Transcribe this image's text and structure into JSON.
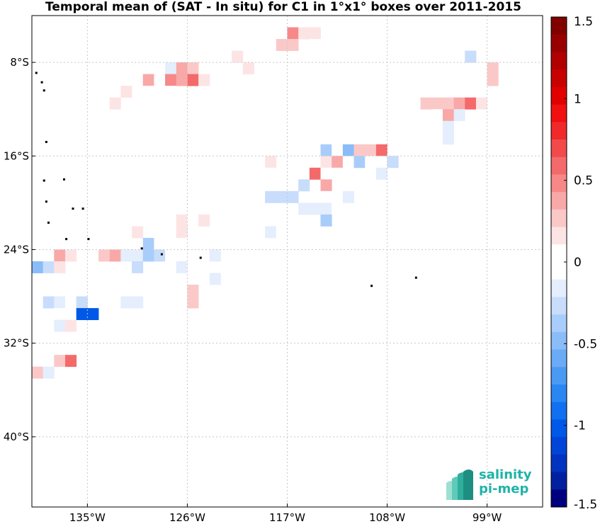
{
  "title": "Temporal mean of (SAT - In situ) for C1 in 1°x1° boxes over 2011-2015",
  "x_tick_labels": [
    "135°W",
    "126°W",
    "117°W",
    "108°W",
    "99°W"
  ],
  "y_tick_labels": [
    "8°S",
    "16°S",
    "24°S",
    "32°S",
    "40°S"
  ],
  "colorbar": {
    "tick_labels": [
      "1.5",
      "1",
      "0.5",
      "0",
      "-0.5",
      "-1",
      "-1.5"
    ],
    "tick_values": [
      1.5,
      1,
      0.5,
      0,
      -0.5,
      -1,
      -1.5
    ],
    "min": -1.5,
    "max": 1.5,
    "colors": [
      "#00007f",
      "#0020a0",
      "#0033c0",
      "#0044d8",
      "#0058e8",
      "#1070f0",
      "#2a86f2",
      "#4a9af4",
      "#6aabf6",
      "#8abcf8",
      "#a8cdfa",
      "#c8ddfb",
      "#e4eefd",
      "#ffffff",
      "#ffffff",
      "#fde4e4",
      "#fbc8c8",
      "#f9a8a8",
      "#f68888",
      "#f46a6a",
      "#f24a4a",
      "#f02a2a",
      "#f01010",
      "#e00000",
      "#c80000",
      "#b00000",
      "#980000",
      "#800000"
    ]
  },
  "logo": {
    "line1": "salinity",
    "line2": "pi-mep"
  },
  "chart_data": {
    "type": "heatmap",
    "title": "Temporal mean of (SAT - In situ) for C1 in 1°x1° boxes over 2011-2015",
    "x_unit": "longitude",
    "y_unit": "latitude",
    "xlim": [
      -140,
      -94
    ],
    "ylim": [
      -46,
      -4
    ],
    "grid": true,
    "cells": [
      {
        "lon": -116.5,
        "lat": -5.5,
        "v": 0.45
      },
      {
        "lon": -115.5,
        "lat": -5.5,
        "v": 0.15
      },
      {
        "lon": -114.5,
        "lat": -5.5,
        "v": 0.15
      },
      {
        "lon": -117.5,
        "lat": -6.5,
        "v": 0.3
      },
      {
        "lon": -116.5,
        "lat": -6.5,
        "v": 0.3
      },
      {
        "lon": -114.5,
        "lat": -6.5,
        "v": 0.1
      },
      {
        "lon": -112.5,
        "lat": -5.5,
        "v": 0.1
      },
      {
        "lon": -100.5,
        "lat": -5.5,
        "v": -0.1
      },
      {
        "lon": -99.5,
        "lat": -5.5,
        "v": -0.1
      },
      {
        "lon": -100.5,
        "lat": -7.5,
        "v": -0.3
      },
      {
        "lon": -121.5,
        "lat": -7.5,
        "v": 0.15
      },
      {
        "lon": -120.5,
        "lat": -8.5,
        "v": 0.15
      },
      {
        "lon": -127.5,
        "lat": -8.5,
        "v": -0.2
      },
      {
        "lon": -126.5,
        "lat": -8.5,
        "v": 0.35
      },
      {
        "lon": -125.5,
        "lat": -8.5,
        "v": 0.25
      },
      {
        "lon": -129.5,
        "lat": -9.5,
        "v": 0.35
      },
      {
        "lon": -128.5,
        "lat": -9.5,
        "v": -0.1
      },
      {
        "lon": -127.5,
        "lat": -9.5,
        "v": 0.5
      },
      {
        "lon": -126.5,
        "lat": -9.5,
        "v": 0.35
      },
      {
        "lon": -125.5,
        "lat": -9.5,
        "v": 0.6
      },
      {
        "lon": -124.5,
        "lat": -9.5,
        "v": 0.2
      },
      {
        "lon": -129.5,
        "lat": -10.5,
        "v": 0.1
      },
      {
        "lon": -128.5,
        "lat": -10.5,
        "v": 0.1
      },
      {
        "lon": -127.5,
        "lat": -10.5,
        "v": 0.1
      },
      {
        "lon": -131.5,
        "lat": -10.5,
        "v": 0.15
      },
      {
        "lon": -132.5,
        "lat": -11.5,
        "v": 0.2
      },
      {
        "lon": -98.5,
        "lat": -8.5,
        "v": 0.25
      },
      {
        "lon": -98.5,
        "lat": -9.5,
        "v": 0.25
      },
      {
        "lon": -101.5,
        "lat": -10.5,
        "v": -0.1
      },
      {
        "lon": -104.5,
        "lat": -11.5,
        "v": 0.25
      },
      {
        "lon": -103.5,
        "lat": -11.5,
        "v": 0.25
      },
      {
        "lon": -102.5,
        "lat": -11.5,
        "v": 0.25
      },
      {
        "lon": -101.5,
        "lat": -11.5,
        "v": 0.35
      },
      {
        "lon": -100.5,
        "lat": -11.5,
        "v": 0.6
      },
      {
        "lon": -99.5,
        "lat": -11.5,
        "v": 0.15
      },
      {
        "lon": -103.5,
        "lat": -12.5,
        "v": 0.1
      },
      {
        "lon": -102.5,
        "lat": -12.5,
        "v": 0.35
      },
      {
        "lon": -101.5,
        "lat": -12.5,
        "v": -0.2
      },
      {
        "lon": -102.5,
        "lat": -13.5,
        "v": -0.2
      },
      {
        "lon": -103.5,
        "lat": -14.5,
        "v": -0.1
      },
      {
        "lon": -102.5,
        "lat": -14.5,
        "v": -0.2
      },
      {
        "lon": -106.5,
        "lat": -13.5,
        "v": -0.1
      },
      {
        "lon": -112.5,
        "lat": -12.5,
        "v": -0.1
      },
      {
        "lon": -112.5,
        "lat": -13.5,
        "v": 0.1
      },
      {
        "lon": -114.5,
        "lat": -14.5,
        "v": -0.05
      },
      {
        "lon": -113.5,
        "lat": -14.5,
        "v": -0.1
      },
      {
        "lon": -112.5,
        "lat": -14.5,
        "v": -0.1
      },
      {
        "lon": -116.5,
        "lat": -15.5,
        "v": -0.1
      },
      {
        "lon": -113.5,
        "lat": -15.5,
        "v": -0.35
      },
      {
        "lon": -112.5,
        "lat": -15.5,
        "v": -0.1
      },
      {
        "lon": -111.5,
        "lat": -15.5,
        "v": -0.45
      },
      {
        "lon": -110.5,
        "lat": -15.5,
        "v": 0.3
      },
      {
        "lon": -109.5,
        "lat": -15.5,
        "v": 0.3
      },
      {
        "lon": -108.5,
        "lat": -15.5,
        "v": 0.6
      },
      {
        "lon": -113.5,
        "lat": -16.5,
        "v": 0.15
      },
      {
        "lon": -112.5,
        "lat": -16.5,
        "v": 0.4
      },
      {
        "lon": -111.5,
        "lat": -16.5,
        "v": 0.1
      },
      {
        "lon": -110.5,
        "lat": -16.5,
        "v": -0.35
      },
      {
        "lon": -109.5,
        "lat": -16.5,
        "v": 0.1
      },
      {
        "lon": -108.5,
        "lat": -16.5,
        "v": 0.05
      },
      {
        "lon": -107.5,
        "lat": -16.5,
        "v": -0.25
      },
      {
        "lon": -118.5,
        "lat": -16.5,
        "v": 0.2
      },
      {
        "lon": -119.5,
        "lat": -17.5,
        "v": -0.1
      },
      {
        "lon": -118.5,
        "lat": -17.5,
        "v": -0.1
      },
      {
        "lon": -114.5,
        "lat": -17.5,
        "v": 0.6
      },
      {
        "lon": -113.5,
        "lat": -17.5,
        "v": -0.1
      },
      {
        "lon": -112.5,
        "lat": -17.5,
        "v": -0.1
      },
      {
        "lon": -108.5,
        "lat": -17.5,
        "v": -0.2
      },
      {
        "lon": -115.5,
        "lat": -18.5,
        "v": -0.25
      },
      {
        "lon": -113.5,
        "lat": -18.5,
        "v": 0.4
      },
      {
        "lon": -118.5,
        "lat": -19.5,
        "v": -0.25
      },
      {
        "lon": -117.5,
        "lat": -19.5,
        "v": -0.25
      },
      {
        "lon": -116.5,
        "lat": -19.5,
        "v": -0.25
      },
      {
        "lon": -114.5,
        "lat": -19.5,
        "v": -0.1
      },
      {
        "lon": -113.5,
        "lat": -19.5,
        "v": 0.1
      },
      {
        "lon": -111.5,
        "lat": -19.5,
        "v": -0.2
      },
      {
        "lon": -109.5,
        "lat": -19.5,
        "v": -0.1
      },
      {
        "lon": -121.5,
        "lat": -20.5,
        "v": -0.1
      },
      {
        "lon": -115.5,
        "lat": -20.5,
        "v": -0.2
      },
      {
        "lon": -114.5,
        "lat": -20.5,
        "v": -0.2
      },
      {
        "lon": -113.5,
        "lat": -20.5,
        "v": -0.2
      },
      {
        "lon": -112.5,
        "lat": -20.5,
        "v": -0.1
      },
      {
        "lon": -110.5,
        "lat": -20.5,
        "v": -0.1
      },
      {
        "lon": -126.5,
        "lat": -21.5,
        "v": 0.2
      },
      {
        "lon": -125.5,
        "lat": -21.5,
        "v": -0.1
      },
      {
        "lon": -124.5,
        "lat": -21.5,
        "v": 0.2
      },
      {
        "lon": -117.5,
        "lat": -21.5,
        "v": -0.1
      },
      {
        "lon": -113.5,
        "lat": -21.5,
        "v": -0.4
      },
      {
        "lon": -126.5,
        "lat": -22.5,
        "v": 0.15
      },
      {
        "lon": -126.5,
        "lat": -23.5,
        "v": 0.1
      },
      {
        "lon": -130.5,
        "lat": -22.5,
        "v": 0.2
      },
      {
        "lon": -118.5,
        "lat": -22.5,
        "v": -0.2
      },
      {
        "lon": -117.5,
        "lat": -22.5,
        "v": -0.1
      },
      {
        "lon": -119.5,
        "lat": -23.5,
        "v": -0.1
      },
      {
        "lon": -129.5,
        "lat": -23.5,
        "v": -0.4
      },
      {
        "lon": -128.5,
        "lat": -23.5,
        "v": -0.1
      },
      {
        "lon": -137.5,
        "lat": -24.5,
        "v": 0.35
      },
      {
        "lon": -136.5,
        "lat": -24.5,
        "v": 0.15
      },
      {
        "lon": -133.5,
        "lat": -24.5,
        "v": 0.25
      },
      {
        "lon": -132.5,
        "lat": -24.5,
        "v": 0.35
      },
      {
        "lon": -131.5,
        "lat": -24.5,
        "v": -0.15
      },
      {
        "lon": -130.5,
        "lat": -24.5,
        "v": -0.15
      },
      {
        "lon": -129.5,
        "lat": -24.5,
        "v": -0.4
      },
      {
        "lon": -128.5,
        "lat": -24.5,
        "v": -0.25
      },
      {
        "lon": -127.5,
        "lat": -24.5,
        "v": -0.05
      },
      {
        "lon": -125.5,
        "lat": -24.5,
        "v": -0.05
      },
      {
        "lon": -123.5,
        "lat": -24.5,
        "v": -0.2
      },
      {
        "lon": -139.5,
        "lat": -25.5,
        "v": -0.5
      },
      {
        "lon": -138.5,
        "lat": -25.5,
        "v": -0.25
      },
      {
        "lon": -137.5,
        "lat": -25.5,
        "v": 0.15
      },
      {
        "lon": -130.5,
        "lat": -25.5,
        "v": -0.25
      },
      {
        "lon": -126.5,
        "lat": -25.5,
        "v": -0.15
      },
      {
        "lon": -125.5,
        "lat": -25.5,
        "v": -0.1
      },
      {
        "lon": -124.5,
        "lat": -25.5,
        "v": -0.1
      },
      {
        "lon": -127.5,
        "lat": -26.5,
        "v": -0.05
      },
      {
        "lon": -123.5,
        "lat": -26.5,
        "v": -0.15
      },
      {
        "lon": -125.5,
        "lat": -27.5,
        "v": 0.25
      },
      {
        "lon": -125.5,
        "lat": -28.5,
        "v": 0.25
      },
      {
        "lon": -138.5,
        "lat": -28.5,
        "v": -0.3
      },
      {
        "lon": -137.5,
        "lat": -28.5,
        "v": -0.2
      },
      {
        "lon": -136.5,
        "lat": -28.5,
        "v": -0.1
      },
      {
        "lon": -135.5,
        "lat": -28.5,
        "v": -0.3
      },
      {
        "lon": -131.5,
        "lat": -28.5,
        "v": -0.2
      },
      {
        "lon": -130.5,
        "lat": -28.5,
        "v": -0.2
      },
      {
        "lon": -127.5,
        "lat": -28.5,
        "v": -0.05
      },
      {
        "lon": -137.5,
        "lat": -29.5,
        "v": -0.05
      },
      {
        "lon": -135.5,
        "lat": -29.5,
        "v": -1.0
      },
      {
        "lon": -134.5,
        "lat": -29.5,
        "v": -1.0
      },
      {
        "lon": -137.5,
        "lat": -30.5,
        "v": -0.2
      },
      {
        "lon": -136.5,
        "lat": -30.5,
        "v": 0.15
      },
      {
        "lon": -138.5,
        "lat": -31.5,
        "v": -0.1
      },
      {
        "lon": -137.5,
        "lat": -33.5,
        "v": 0.3
      },
      {
        "lon": -136.5,
        "lat": -33.5,
        "v": 0.55
      },
      {
        "lon": -139.5,
        "lat": -34.5,
        "v": 0.3
      },
      {
        "lon": -138.5,
        "lat": -34.5,
        "v": -0.2
      }
    ],
    "islands": [
      {
        "lon": -139.6,
        "lat": -8.9
      },
      {
        "lon": -139.1,
        "lat": -9.7
      },
      {
        "lon": -138.9,
        "lat": -10.4
      },
      {
        "lon": -138.7,
        "lat": -14.8
      },
      {
        "lon": -138.9,
        "lat": -18.1
      },
      {
        "lon": -137.1,
        "lat": -18.0
      },
      {
        "lon": -138.7,
        "lat": -19.9
      },
      {
        "lon": -136.3,
        "lat": -20.5
      },
      {
        "lon": -135.4,
        "lat": -20.5
      },
      {
        "lon": -138.5,
        "lat": -21.7
      },
      {
        "lon": -136.9,
        "lat": -23.1
      },
      {
        "lon": -134.9,
        "lat": -23.1
      },
      {
        "lon": -130.1,
        "lat": -23.9
      },
      {
        "lon": -128.3,
        "lat": -24.4
      },
      {
        "lon": -124.8,
        "lat": -24.7
      },
      {
        "lon": -109.4,
        "lat": -27.1
      },
      {
        "lon": -105.4,
        "lat": -26.4
      }
    ]
  }
}
